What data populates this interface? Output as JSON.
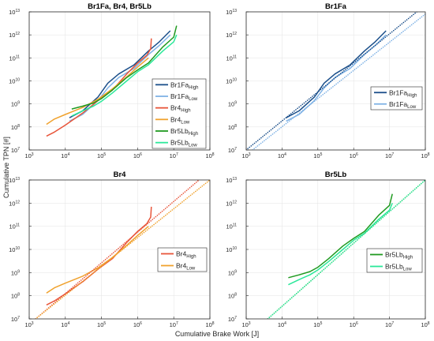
{
  "figure": {
    "ylabel": "Cumulative TPN [#]",
    "xlabel": "Cumulative Brake Work [J]"
  },
  "colors": {
    "Br1Fa_High": "#1b4f8a",
    "Br1Fa_Low": "#7fb2e5",
    "Br4_High": "#e8553a",
    "Br4_Low": "#f0a22e",
    "Br5Lb_High": "#1f9a1f",
    "Br5Lb_Low": "#2be89a"
  },
  "chart_data": [
    {
      "type": "line",
      "title": "Br1Fa, Br4, Br5Lb",
      "xscale": "log",
      "yscale": "log",
      "xlim": [
        1000,
        100000000
      ],
      "ylim": [
        10000000,
        10000000000000
      ],
      "grid": true,
      "legend_position": "right",
      "series": [
        {
          "key": "Br1Fa_High",
          "name": "Br1Fa",
          "sub": "High",
          "style": "solid",
          "points": [
            [
              13000,
              250000000.0
            ],
            [
              30000,
              500000000.0
            ],
            [
              80000,
              2000000000.0
            ],
            [
              150000,
              8000000000.0
            ],
            [
              300000,
              20000000000.0
            ],
            [
              800000,
              50000000000.0
            ],
            [
              2000000,
              200000000000.0
            ],
            [
              4000000,
              500000000000.0
            ],
            [
              8000000,
              1500000000000.0
            ]
          ]
        },
        {
          "key": "Br1Fa_Low",
          "name": "Br1Fa",
          "sub": "Low",
          "style": "solid",
          "points": [
            [
              13000,
              180000000.0
            ],
            [
              30000,
              350000000.0
            ],
            [
              80000,
              1400000000.0
            ],
            [
              150000,
              5000000000.0
            ],
            [
              300000,
              14000000000.0
            ],
            [
              800000,
              35000000000.0
            ],
            [
              2000000,
              140000000000.0
            ],
            [
              4000000,
              350000000000.0
            ],
            [
              8000000,
              1000000000000.0
            ]
          ]
        },
        {
          "key": "Br4_High",
          "name": "Br4",
          "sub": "High",
          "style": "solid",
          "points": [
            [
              3000,
              40000000.0
            ],
            [
              5000,
              60000000.0
            ],
            [
              10000,
              120000000.0
            ],
            [
              30000,
              400000000.0
            ],
            [
              80000,
              1400000000.0
            ],
            [
              200000,
              4000000000.0
            ],
            [
              500000,
              20000000000.0
            ],
            [
              1000000,
              60000000000.0
            ],
            [
              1800000,
              130000000000.0
            ],
            [
              2300000,
              250000000000.0
            ],
            [
              2400000,
              700000000000.0
            ]
          ]
        },
        {
          "key": "Br4_Low",
          "name": "Br4",
          "sub": "Low",
          "style": "solid",
          "points": [
            [
              3000,
              130000000.0
            ],
            [
              5000,
              220000000.0
            ],
            [
              10000,
              350000000.0
            ],
            [
              30000,
              700000000.0
            ],
            [
              80000,
              1600000000.0
            ],
            [
              200000,
              4500000000.0
            ],
            [
              500000,
              15000000000.0
            ],
            [
              1000000,
              40000000000.0
            ],
            [
              2000000,
              100000000000.0
            ]
          ]
        },
        {
          "key": "Br5Lb_High",
          "name": "Br5Lb",
          "sub": "High",
          "style": "solid",
          "points": [
            [
              15000,
              600000000.0
            ],
            [
              30000,
              800000000.0
            ],
            [
              60000,
              1100000000.0
            ],
            [
              100000,
              1700000000.0
            ],
            [
              200000,
              4000000000.0
            ],
            [
              500000,
              14000000000.0
            ],
            [
              1000000,
              30000000000.0
            ],
            [
              2000000,
              60000000000.0
            ],
            [
              5000000,
              300000000000.0
            ],
            [
              10000000,
              800000000000.0
            ],
            [
              12000000,
              2500000000000.0
            ]
          ]
        },
        {
          "key": "Br5Lb_Low",
          "name": "Br5Lb",
          "sub": "Low",
          "style": "solid",
          "points": [
            [
              15000,
              300000000.0
            ],
            [
              30000,
              500000000.0
            ],
            [
              60000,
              800000000.0
            ],
            [
              100000,
              1300000000.0
            ],
            [
              200000,
              3000000000.0
            ],
            [
              500000,
              10000000000.0
            ],
            [
              1000000,
              25000000000.0
            ],
            [
              2000000,
              50000000000.0
            ],
            [
              5000000,
              200000000000.0
            ],
            [
              10000000,
              500000000000.0
            ],
            [
              12000000,
              1000000000000.0
            ]
          ]
        }
      ]
    },
    {
      "type": "line",
      "title": "Br1Fa",
      "xscale": "log",
      "yscale": "log",
      "xlim": [
        1000,
        100000000
      ],
      "ylim": [
        10000000,
        10000000000000
      ],
      "grid": true,
      "legend_position": "right",
      "series": [
        {
          "key": "Br1Fa_High",
          "name": "Br1Fa",
          "sub": "High",
          "style": "solid",
          "points": [
            [
              13000,
              250000000.0
            ],
            [
              30000,
              500000000.0
            ],
            [
              80000,
              2000000000.0
            ],
            [
              150000,
              8000000000.0
            ],
            [
              300000,
              20000000000.0
            ],
            [
              800000,
              50000000000.0
            ],
            [
              2000000,
              200000000000.0
            ],
            [
              4000000,
              500000000000.0
            ],
            [
              8000000,
              1500000000000.0
            ]
          ]
        },
        {
          "key": "Br1Fa_Low",
          "name": "Br1Fa",
          "sub": "Low",
          "style": "solid",
          "points": [
            [
              13000,
              180000000.0
            ],
            [
              30000,
              350000000.0
            ],
            [
              80000,
              1400000000.0
            ],
            [
              150000,
              5000000000.0
            ],
            [
              300000,
              14000000000.0
            ],
            [
              800000,
              35000000000.0
            ],
            [
              2000000,
              140000000000.0
            ],
            [
              4000000,
              350000000000.0
            ],
            [
              8000000,
              1000000000000.0
            ]
          ]
        },
        {
          "key": "Br1Fa_High",
          "style": "dotted",
          "points": [
            [
              1000,
              10000000.0
            ],
            [
              100000000,
              20000000000000.0
            ]
          ]
        },
        {
          "key": "Br1Fa_Low",
          "style": "dotted",
          "points": [
            [
              1500,
              10000000.0
            ],
            [
              100000000,
              8000000000000.0
            ]
          ]
        }
      ]
    },
    {
      "type": "line",
      "title": "Br4",
      "xscale": "log",
      "yscale": "log",
      "xlim": [
        1000,
        100000000
      ],
      "ylim": [
        10000000,
        10000000000000
      ],
      "grid": true,
      "legend_position": "right",
      "series": [
        {
          "key": "Br4_High",
          "name": "Br4",
          "sub": "High",
          "style": "solid",
          "points": [
            [
              3000,
              40000000.0
            ],
            [
              5000,
              60000000.0
            ],
            [
              10000,
              120000000.0
            ],
            [
              30000,
              400000000.0
            ],
            [
              80000,
              1400000000.0
            ],
            [
              200000,
              4000000000.0
            ],
            [
              500000,
              20000000000.0
            ],
            [
              1000000,
              60000000000.0
            ],
            [
              1800000,
              130000000000.0
            ],
            [
              2300000,
              250000000000.0
            ],
            [
              2400000,
              700000000000.0
            ]
          ]
        },
        {
          "key": "Br4_Low",
          "name": "Br4",
          "sub": "Low",
          "style": "solid",
          "points": [
            [
              3000,
              130000000.0
            ],
            [
              5000,
              220000000.0
            ],
            [
              10000,
              350000000.0
            ],
            [
              30000,
              700000000.0
            ],
            [
              80000,
              1600000000.0
            ],
            [
              200000,
              4500000000.0
            ],
            [
              500000,
              15000000000.0
            ],
            [
              1000000,
              40000000000.0
            ],
            [
              2000000,
              100000000000.0
            ]
          ]
        },
        {
          "key": "Br4_High",
          "style": "dotted",
          "points": [
            [
              1500,
              10000000.0
            ],
            [
              50000000,
              10000000000000.0
            ]
          ]
        },
        {
          "key": "Br4_Low",
          "style": "dotted",
          "points": [
            [
              1500,
              10000000.0
            ],
            [
              100000000,
              10000000000000.0
            ]
          ]
        }
      ]
    },
    {
      "type": "line",
      "title": "Br5Lb",
      "xscale": "log",
      "yscale": "log",
      "xlim": [
        1000,
        100000000
      ],
      "ylim": [
        10000000,
        10000000000000
      ],
      "grid": true,
      "legend_position": "right",
      "series": [
        {
          "key": "Br5Lb_High",
          "name": "Br5Lb",
          "sub": "High",
          "style": "solid",
          "points": [
            [
              15000,
              600000000.0
            ],
            [
              30000,
              800000000.0
            ],
            [
              60000,
              1100000000.0
            ],
            [
              100000,
              1700000000.0
            ],
            [
              200000,
              4000000000.0
            ],
            [
              500000,
              14000000000.0
            ],
            [
              1000000,
              30000000000.0
            ],
            [
              2000000,
              60000000000.0
            ],
            [
              5000000,
              300000000000.0
            ],
            [
              10000000,
              800000000000.0
            ],
            [
              12000000,
              2500000000000.0
            ]
          ]
        },
        {
          "key": "Br5Lb_Low",
          "name": "Br5Lb",
          "sub": "Low",
          "style": "solid",
          "points": [
            [
              15000,
              300000000.0
            ],
            [
              30000,
              500000000.0
            ],
            [
              60000,
              800000000.0
            ],
            [
              100000,
              1300000000.0
            ],
            [
              200000,
              3000000000.0
            ],
            [
              500000,
              10000000000.0
            ],
            [
              1000000,
              25000000000.0
            ],
            [
              2000000,
              50000000000.0
            ],
            [
              5000000,
              200000000000.0
            ],
            [
              10000000,
              500000000000.0
            ],
            [
              12000000,
              1000000000000.0
            ]
          ]
        },
        {
          "key": "Br5Lb_High",
          "style": "dotted",
          "points": [
            [
              4000,
              10000000.0
            ],
            [
              100000000,
              10000000000000.0
            ]
          ]
        },
        {
          "key": "Br5Lb_Low",
          "style": "dotted",
          "points": [
            [
              4000,
              10000000.0
            ],
            [
              100000000,
              10000000000000.0
            ]
          ]
        }
      ]
    }
  ]
}
